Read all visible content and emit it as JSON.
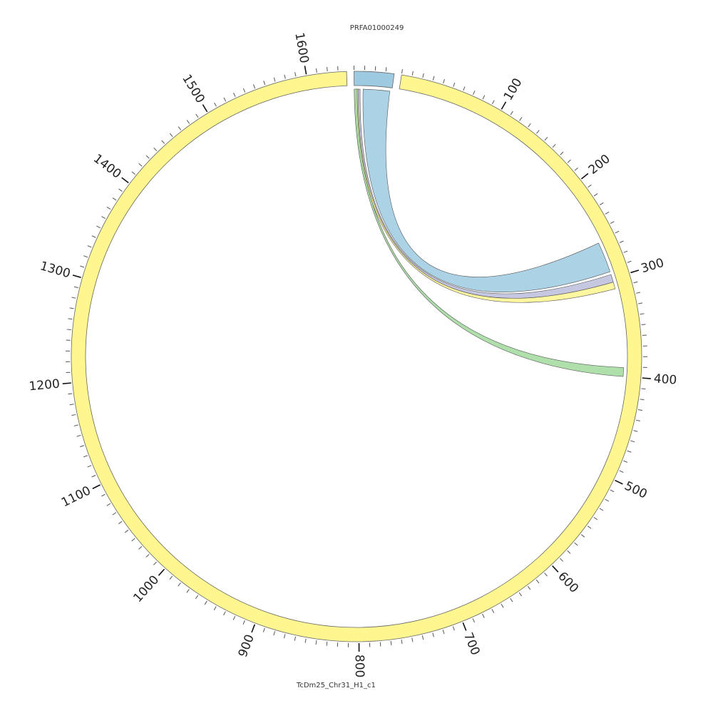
{
  "chart_data": {
    "type": "chord",
    "segments": [
      {
        "name": "PRFA01000249",
        "length": 38,
        "color": "#9ecae1",
        "minor_tick_interval": 10,
        "major_ticks": []
      },
      {
        "name": "TcDm25_Chr31_H1_c1",
        "length": 1638,
        "color": "#fff68f",
        "minor_tick_interval": 10,
        "major_ticks": [
          100,
          200,
          300,
          400,
          500,
          600,
          700,
          800,
          900,
          1000,
          1100,
          1200,
          1300,
          1400,
          1500,
          1600
        ]
      }
    ],
    "links": [
      {
        "source": 0,
        "source_start": 9,
        "source_end": 36,
        "target": 1,
        "target_start": 262,
        "target_end": 293,
        "color": "#9ecae1"
      },
      {
        "source": 0,
        "source_start": 3,
        "source_end": 6,
        "target": 1,
        "target_start": 296,
        "target_end": 304,
        "color": "#bcbddc"
      },
      {
        "source": 0,
        "source_start": 1,
        "source_end": 4,
        "target": 1,
        "target_start": 304,
        "target_end": 311,
        "color": "#fff68f"
      },
      {
        "source": 0,
        "source_start": 0,
        "source_end": 3,
        "target": 1,
        "target_start": 391,
        "target_end": 400,
        "color": "#a1d99b"
      }
    ]
  }
}
